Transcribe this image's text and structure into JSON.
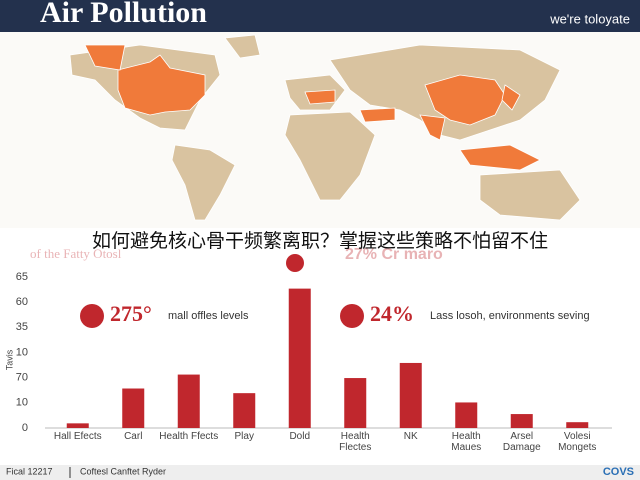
{
  "header": {
    "title": "Air Pollution",
    "tagline": "we're toloyate"
  },
  "overlay_text": "如何避免核心骨干频繁离职？掌握这些策略不怕留不住",
  "faded_text": {
    "left": "of the Fatty Otosl",
    "right": "27% Cr maro"
  },
  "callouts": [
    {
      "figure": "275°",
      "text": "mall offles levels"
    },
    {
      "figure": "24%",
      "text": "Lass losoh, environments seving"
    }
  ],
  "y_axis_text": [
    "65",
    "60",
    "35",
    "10",
    "70",
    "10",
    "0"
  ],
  "chart_data": {
    "type": "bar",
    "y_label": "Tavis",
    "categories": [
      "Hall Efects",
      "Carl",
      "Health Ffects",
      "Play",
      "Dold",
      "Health Flectes",
      "NK",
      "Health Maues",
      "Arsel Damage",
      "Volesi Mongets"
    ],
    "values": [
      2,
      17,
      23,
      15,
      60,
      21.5,
      28,
      11,
      6,
      2.5
    ],
    "color": "#c0272d",
    "ylim": [
      0,
      65
    ]
  },
  "footer": {
    "left": "Fical 12217",
    "middle": "Coftesl Canftet Ryder",
    "logo": "COVS"
  }
}
